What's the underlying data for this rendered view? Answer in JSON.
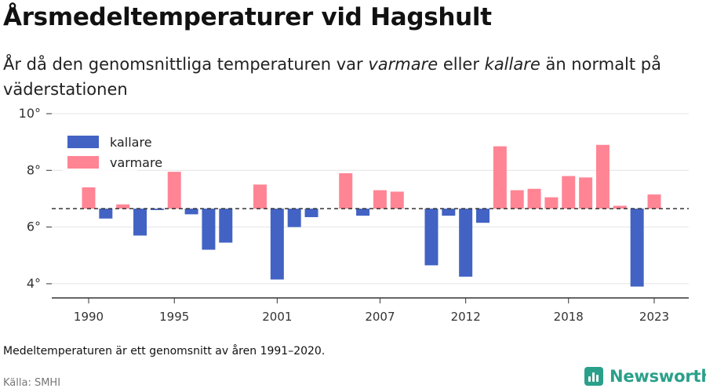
{
  "title": "Årsmedeltemperaturer vid Hagshult",
  "subtitle": {
    "part1": "År då den genomsnittliga temperaturen var ",
    "warmer": "varmare",
    "part2": " eller ",
    "colder": "kallare",
    "part3": " än normalt på väderstationen"
  },
  "note": "Medeltemperaturen är ett genomsnitt av åren 1991–2020.",
  "source": "Källa: SMHI",
  "brand": "Newsworthy",
  "colors": {
    "warmer": "#ff8594",
    "colder": "#4263c4",
    "grid": "#e4e4e4",
    "axis": "#333333",
    "reference": "#333333",
    "brand": "#2aa08a"
  },
  "chart_data": {
    "type": "bar",
    "ylim": [
      3.5,
      10
    ],
    "y_ticks": [
      4,
      6,
      8,
      10
    ],
    "y_tick_labels": [
      "4°",
      "6°",
      "8°",
      "10°"
    ],
    "x_tick_labels": [
      "1990",
      "1995",
      "2001",
      "2007",
      "2012",
      "2018",
      "2023"
    ],
    "x_ticks": [
      1990,
      1995,
      2001,
      2007,
      2012,
      2018,
      2023
    ],
    "grid": true,
    "legend_position": "top-left",
    "baseline": 6.65,
    "baseline_style": "dashed",
    "series": [
      {
        "name": "kallare",
        "color": "#4263c4"
      },
      {
        "name": "varmare",
        "color": "#ff8594"
      }
    ],
    "years": [
      1990,
      1991,
      1992,
      1993,
      1994,
      1995,
      1996,
      1997,
      1998,
      1999,
      2000,
      2001,
      2002,
      2003,
      2004,
      2005,
      2006,
      2007,
      2008,
      2009,
      2010,
      2011,
      2012,
      2013,
      2014,
      2015,
      2016,
      2017,
      2018,
      2019,
      2020,
      2021,
      2022,
      2023
    ],
    "values": [
      7.4,
      6.3,
      6.8,
      5.7,
      6.6,
      7.95,
      6.45,
      5.2,
      5.45,
      null,
      7.5,
      4.15,
      6.0,
      6.35,
      null,
      7.9,
      6.4,
      7.3,
      7.25,
      null,
      4.65,
      6.4,
      4.25,
      6.15,
      8.85,
      7.3,
      7.35,
      7.05,
      7.8,
      7.75,
      8.9,
      6.75,
      3.9,
      7.15
    ]
  }
}
